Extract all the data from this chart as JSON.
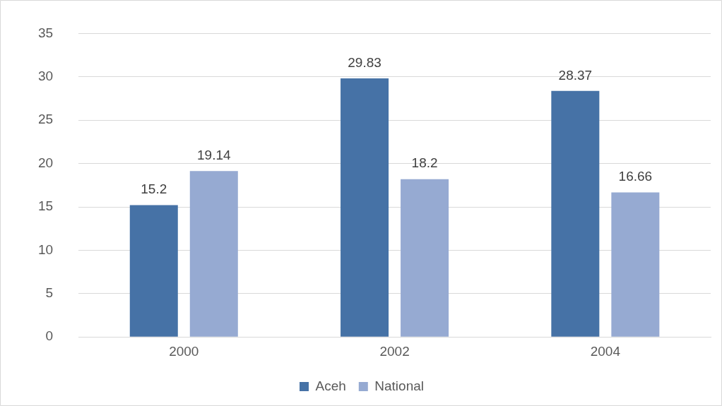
{
  "chart_data": {
    "type": "bar",
    "categories": [
      "2000",
      "2002",
      "2004"
    ],
    "series": [
      {
        "name": "Aceh",
        "color": "#4672a6",
        "values": [
          15.2,
          29.83,
          28.37
        ]
      },
      {
        "name": "National",
        "color": "#96aad2",
        "values": [
          19.14,
          18.2,
          16.66
        ]
      }
    ],
    "ylim": [
      0,
      35
    ],
    "yticks": [
      0,
      5,
      10,
      15,
      20,
      25,
      30,
      35
    ],
    "grid": "y",
    "legend": "bottom",
    "data_labels": true
  }
}
